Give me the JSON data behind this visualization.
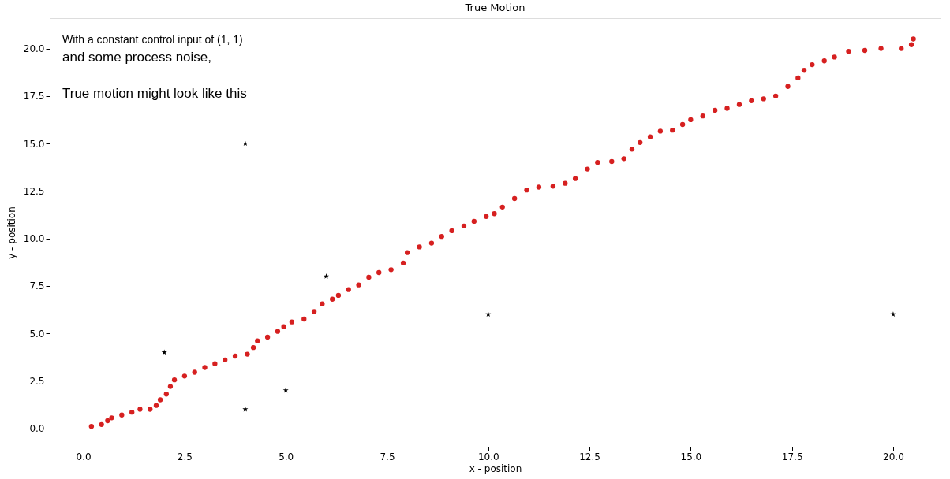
{
  "chart_data": {
    "type": "scatter",
    "title": "True Motion",
    "xlabel": "x - position",
    "ylabel": "y - position",
    "annotations": [
      "With a constant control input of (1, 1)",
      "and some process noise,",
      "True motion might look like this"
    ],
    "xlim": [
      -0.83,
      21.17
    ],
    "ylim": [
      -0.97,
      21.6
    ],
    "xticks": [
      {
        "value": 0,
        "label": "0.0"
      },
      {
        "value": 2.5,
        "label": "2.5"
      },
      {
        "value": 5,
        "label": "5.0"
      },
      {
        "value": 7.5,
        "label": "7.5"
      },
      {
        "value": 10,
        "label": "10.0"
      },
      {
        "value": 12.5,
        "label": "12.5"
      },
      {
        "value": 15,
        "label": "15.0"
      },
      {
        "value": 17.5,
        "label": "17.5"
      },
      {
        "value": 20,
        "label": "20.0"
      }
    ],
    "yticks": [
      {
        "value": 0,
        "label": "0.0"
      },
      {
        "value": 2.5,
        "label": "2.5"
      },
      {
        "value": 5,
        "label": "5.0"
      },
      {
        "value": 7.5,
        "label": "7.5"
      },
      {
        "value": 10,
        "label": "10.0"
      },
      {
        "value": 12.5,
        "label": "12.5"
      },
      {
        "value": 15,
        "label": "15.0"
      },
      {
        "value": 17.5,
        "label": "17.5"
      },
      {
        "value": 20,
        "label": "20.0"
      }
    ],
    "grid": false,
    "series": [
      {
        "color": "#d62020",
        "marker": "circle",
        "x": [
          0.2,
          0.45,
          0.6,
          0.7,
          0.95,
          1.2,
          1.4,
          1.65,
          1.8,
          1.9,
          2.05,
          2.15,
          2.25,
          2.5,
          2.75,
          3.0,
          3.25,
          3.5,
          3.75,
          4.05,
          4.2,
          4.3,
          4.55,
          4.8,
          4.95,
          5.15,
          5.45,
          5.7,
          5.9,
          6.15,
          6.3,
          6.55,
          6.8,
          7.05,
          7.3,
          7.6,
          7.9,
          8.0,
          8.3,
          8.6,
          8.85,
          9.1,
          9.4,
          9.65,
          9.95,
          10.15,
          10.35,
          10.65,
          10.95,
          11.25,
          11.6,
          11.9,
          12.15,
          12.45,
          12.7,
          13.05,
          13.35,
          13.55,
          13.75,
          14.0,
          14.25,
          14.55,
          14.8,
          15.0,
          15.3,
          15.6,
          15.9,
          16.2,
          16.5,
          16.8,
          17.1,
          17.4,
          17.65,
          17.8,
          18.0,
          18.3,
          18.55,
          18.9,
          19.3,
          19.7,
          20.2,
          20.45,
          20.5
        ],
        "values": [
          0.1,
          0.2,
          0.4,
          0.55,
          0.7,
          0.85,
          1.0,
          1.0,
          1.2,
          1.5,
          1.8,
          2.2,
          2.55,
          2.75,
          2.95,
          3.2,
          3.4,
          3.6,
          3.8,
          3.9,
          4.25,
          4.6,
          4.8,
          5.1,
          5.35,
          5.6,
          5.75,
          6.15,
          6.55,
          6.8,
          7.0,
          7.3,
          7.55,
          7.95,
          8.2,
          8.35,
          8.7,
          9.25,
          9.55,
          9.75,
          10.1,
          10.4,
          10.65,
          10.9,
          11.15,
          11.3,
          11.65,
          12.1,
          12.55,
          12.7,
          12.75,
          12.9,
          13.15,
          13.65,
          14.0,
          14.05,
          14.2,
          14.7,
          15.05,
          15.35,
          15.65,
          15.7,
          16.0,
          16.25,
          16.45,
          16.75,
          16.85,
          17.05,
          17.25,
          17.35,
          17.5,
          18.0,
          18.45,
          18.85,
          19.15,
          19.35,
          19.55,
          19.85,
          19.9,
          20.0,
          20.0,
          20.2,
          20.5
        ]
      },
      {
        "color": "#000000",
        "marker": "star",
        "x": [
          2,
          4,
          4,
          5,
          6,
          10,
          20
        ],
        "values": [
          4,
          15,
          1,
          2,
          8,
          6,
          6
        ]
      }
    ]
  }
}
